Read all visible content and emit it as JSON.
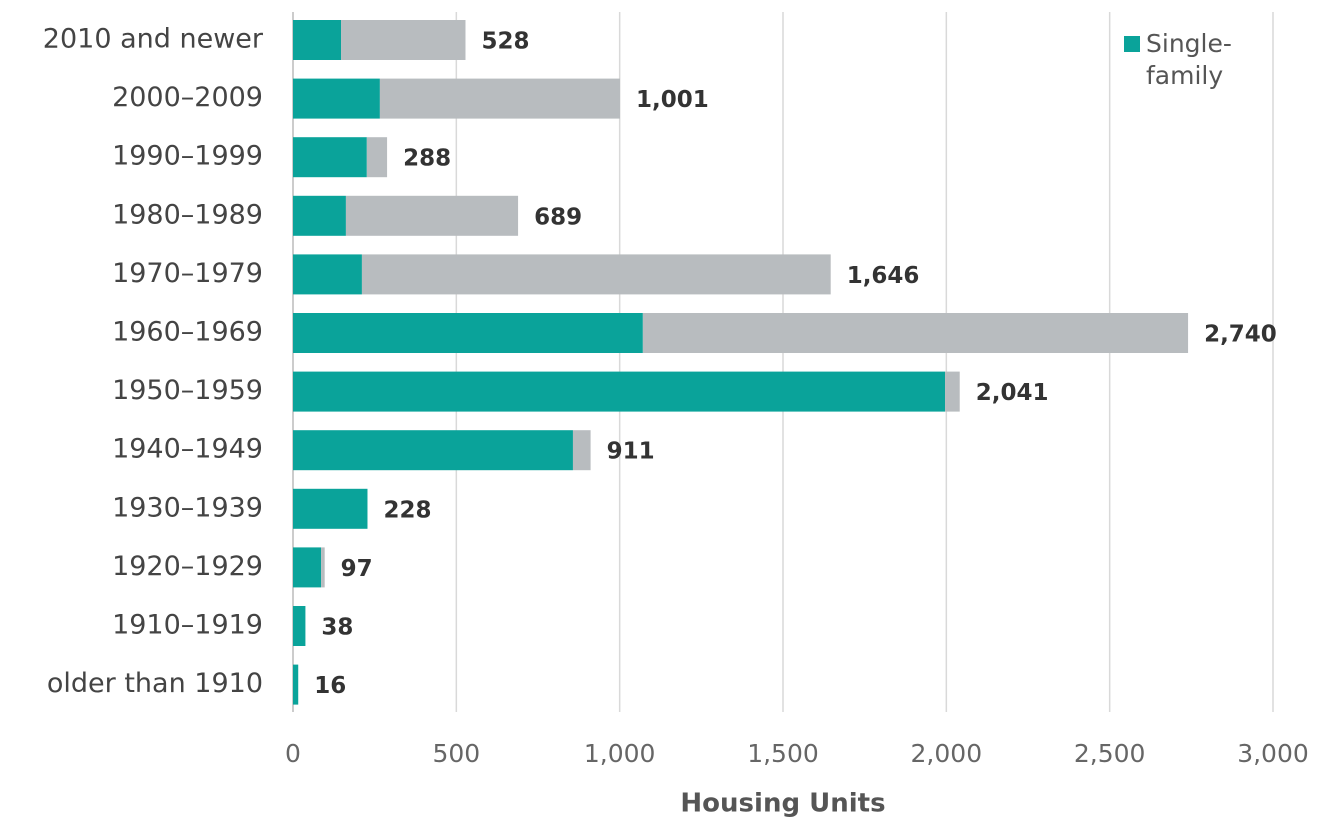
{
  "chart_data": {
    "type": "stacked-barh",
    "categories": [
      "2010 and newer",
      "2000–2009",
      "1990–1999",
      "1980–1989",
      "1970–1979",
      "1960–1969",
      "1950–1959",
      "1940–1949",
      "1930–1939",
      "1920–1929",
      "1910–1919",
      "older than 1910"
    ],
    "series": [
      {
        "name": "Single-family",
        "color": "#0aa39a",
        "values": [
          147,
          266,
          226,
          162,
          211,
          1071,
          1996,
          857,
          228,
          86,
          38,
          16
        ]
      },
      {
        "color": "#b8bcbf",
        "values": [
          381,
          735,
          62,
          527,
          1435,
          1669,
          45,
          54,
          0,
          11,
          0,
          0
        ]
      }
    ],
    "totals": [
      528,
      1001,
      288,
      689,
      1646,
      2740,
      2041,
      911,
      228,
      97,
      38,
      16
    ],
    "total_labels": [
      "528",
      "1,001",
      "288",
      "689",
      "1,646",
      "2,740",
      "2,041",
      "911",
      "228",
      "97",
      "38",
      "16"
    ],
    "xlabel": "Housing Units",
    "xlim": [
      0,
      3000
    ],
    "xticks": [
      0,
      500,
      {
        "value": 1000,
        "label": "1,000"
      },
      {
        "value": 1500,
        "label": "1,500"
      },
      {
        "value": 2000,
        "label": "2,000"
      },
      {
        "value": 2500,
        "label": "2,500"
      },
      {
        "value": 3000,
        "label": "3,000"
      }
    ],
    "grid": true,
    "legend": "upper right"
  }
}
